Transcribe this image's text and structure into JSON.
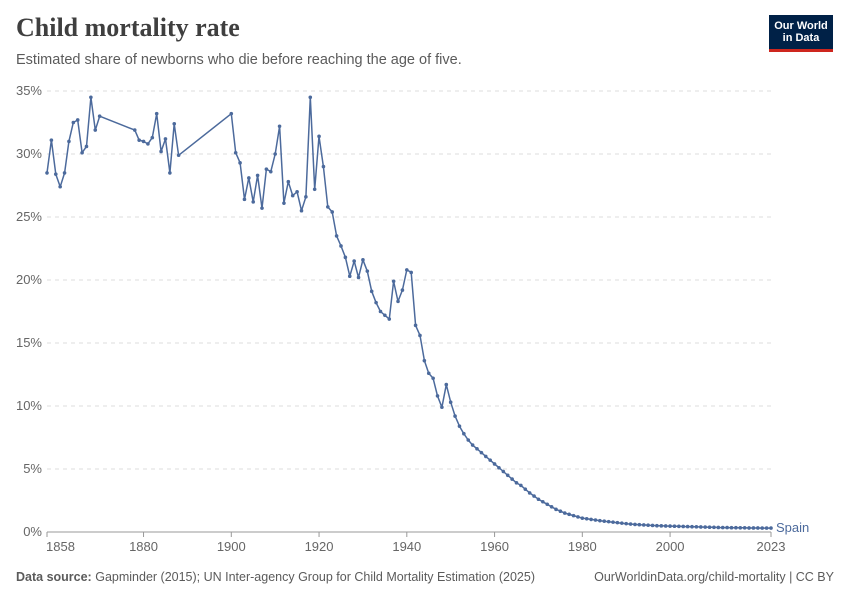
{
  "header": {
    "title": "Child mortality rate",
    "subtitle": "Estimated share of newborns who die before reaching the age of five."
  },
  "logo": {
    "line1": "Our World",
    "line2": "in Data"
  },
  "footer": {
    "source_label": "Data source:",
    "source_text": "Gapminder (2015); UN Inter-agency Group for Child Mortality Estimation (2025)",
    "url_text": "OurWorldinData.org/child-mortality | CC BY"
  },
  "colors": {
    "series": "#4c6a9c",
    "grid": "#dddddd",
    "axis": "#666666",
    "title": "#3f3f3f"
  },
  "chart_data": {
    "type": "line",
    "title": "Child mortality rate",
    "xlabel": "",
    "ylabel": "",
    "xlim": [
      1858,
      2023
    ],
    "ylim": [
      0,
      35
    ],
    "x_ticks": [
      1858,
      1880,
      1900,
      1920,
      1940,
      1960,
      1980,
      2000,
      2023
    ],
    "y_ticks": [
      0,
      5,
      10,
      15,
      20,
      25,
      30,
      35
    ],
    "y_tick_suffix": "%",
    "grid": true,
    "series": [
      {
        "name": "Spain",
        "x": [
          1858,
          1859,
          1860,
          1861,
          1862,
          1863,
          1864,
          1865,
          1866,
          1867,
          1868,
          1869,
          1870,
          1878,
          1879,
          1880,
          1881,
          1882,
          1883,
          1884,
          1885,
          1886,
          1887,
          1888,
          1900,
          1901,
          1902,
          1903,
          1904,
          1905,
          1906,
          1907,
          1908,
          1909,
          1910,
          1911,
          1912,
          1913,
          1914,
          1915,
          1916,
          1917,
          1918,
          1919,
          1920,
          1921,
          1922,
          1923,
          1924,
          1925,
          1926,
          1927,
          1928,
          1929,
          1930,
          1931,
          1932,
          1933,
          1934,
          1935,
          1936,
          1937,
          1938,
          1939,
          1940,
          1941,
          1942,
          1943,
          1944,
          1945,
          1946,
          1947,
          1948,
          1949,
          1950,
          1951,
          1952,
          1953,
          1954,
          1955,
          1956,
          1957,
          1958,
          1959,
          1960,
          1961,
          1962,
          1963,
          1964,
          1965,
          1966,
          1967,
          1968,
          1969,
          1970,
          1971,
          1972,
          1973,
          1974,
          1975,
          1976,
          1977,
          1978,
          1979,
          1980,
          1981,
          1982,
          1983,
          1984,
          1985,
          1986,
          1987,
          1988,
          1989,
          1990,
          1991,
          1992,
          1993,
          1994,
          1995,
          1996,
          1997,
          1998,
          1999,
          2000,
          2001,
          2002,
          2003,
          2004,
          2005,
          2006,
          2007,
          2008,
          2009,
          2010,
          2011,
          2012,
          2013,
          2014,
          2015,
          2016,
          2017,
          2018,
          2019,
          2020,
          2021,
          2022,
          2023
        ],
        "values": [
          28.5,
          31.1,
          28.4,
          27.4,
          28.5,
          31.0,
          32.5,
          32.7,
          30.1,
          30.6,
          34.5,
          31.9,
          33.0,
          31.9,
          31.1,
          31.0,
          30.8,
          31.3,
          33.2,
          30.2,
          31.2,
          28.5,
          32.4,
          29.9,
          33.2,
          30.1,
          29.3,
          26.4,
          28.1,
          26.2,
          28.3,
          25.7,
          28.8,
          28.6,
          30.0,
          32.2,
          26.1,
          27.8,
          26.7,
          27.0,
          25.5,
          26.6,
          34.5,
          27.2,
          31.4,
          29.0,
          25.8,
          25.4,
          23.5,
          22.7,
          21.8,
          20.3,
          21.5,
          20.2,
          21.6,
          20.7,
          19.1,
          18.2,
          17.5,
          17.2,
          16.9,
          19.9,
          18.3,
          19.2,
          20.8,
          20.6,
          16.4,
          15.6,
          13.6,
          12.6,
          12.2,
          10.8,
          9.9,
          11.7,
          10.3,
          9.2,
          8.4,
          7.8,
          7.3,
          6.9,
          6.6,
          6.3,
          6.0,
          5.7,
          5.4,
          5.1,
          4.8,
          4.5,
          4.2,
          3.9,
          3.7,
          3.4,
          3.1,
          2.85,
          2.6,
          2.4,
          2.2,
          2.0,
          1.8,
          1.65,
          1.5,
          1.4,
          1.3,
          1.2,
          1.1,
          1.05,
          1.0,
          0.95,
          0.9,
          0.86,
          0.82,
          0.78,
          0.74,
          0.7,
          0.66,
          0.63,
          0.6,
          0.58,
          0.56,
          0.54,
          0.52,
          0.5,
          0.49,
          0.48,
          0.47,
          0.46,
          0.45,
          0.44,
          0.43,
          0.42,
          0.41,
          0.4,
          0.39,
          0.38,
          0.37,
          0.36,
          0.35,
          0.35,
          0.34,
          0.34,
          0.33,
          0.33,
          0.32,
          0.32,
          0.32,
          0.31,
          0.31,
          0.31
        ]
      }
    ]
  }
}
